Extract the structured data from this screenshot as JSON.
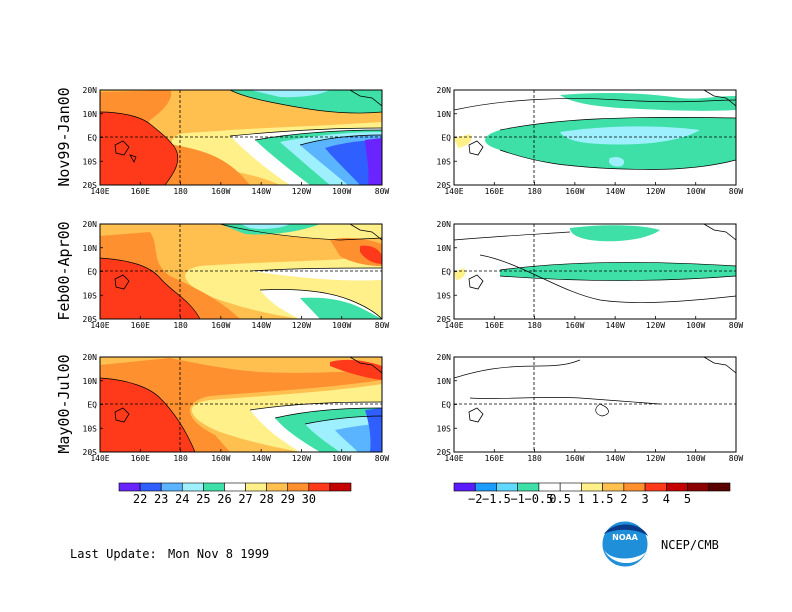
{
  "rows": [
    {
      "label": "Nov99-Jan00"
    },
    {
      "label": "Feb00-Apr00"
    },
    {
      "label": "May00-Jul00"
    }
  ],
  "axes": {
    "x_ticks": [
      "140E",
      "160E",
      "180",
      "160W",
      "140W",
      "120W",
      "100W",
      "80W"
    ],
    "y_ticks": [
      "20N",
      "10N",
      "EQ",
      "10S",
      "20S"
    ]
  },
  "sst_colorbar": {
    "labels": [
      "22",
      "23",
      "24",
      "25",
      "26",
      "27",
      "28",
      "29",
      "30"
    ],
    "colors": [
      "#6a24ff",
      "#2f5fff",
      "#5ab4ff",
      "#9ef0ff",
      "#3fe0a8",
      "#ffffff",
      "#fff08a",
      "#ffc050",
      "#ff9030",
      "#ff3a1a",
      "#c40000"
    ]
  },
  "anom_colorbar": {
    "labels": [
      "−2",
      "−1.5",
      "−1",
      "−0.5",
      "0.5",
      "1",
      "1.5",
      "2",
      "3",
      "4",
      "5"
    ],
    "colors": [
      "#5a1cff",
      "#1c9cff",
      "#60d8ff",
      "#3fe0a8",
      "#ffffff",
      "#ffffff",
      "#fff08a",
      "#ffc050",
      "#ff9030",
      "#ff3a1a",
      "#c40000",
      "#8a0000",
      "#5a0000"
    ]
  },
  "footer": {
    "update_label": "Last Update:",
    "update_date": "Mon Nov 8 1999",
    "credit": "NCEP/CMB",
    "logo_text": "NOAA"
  }
}
